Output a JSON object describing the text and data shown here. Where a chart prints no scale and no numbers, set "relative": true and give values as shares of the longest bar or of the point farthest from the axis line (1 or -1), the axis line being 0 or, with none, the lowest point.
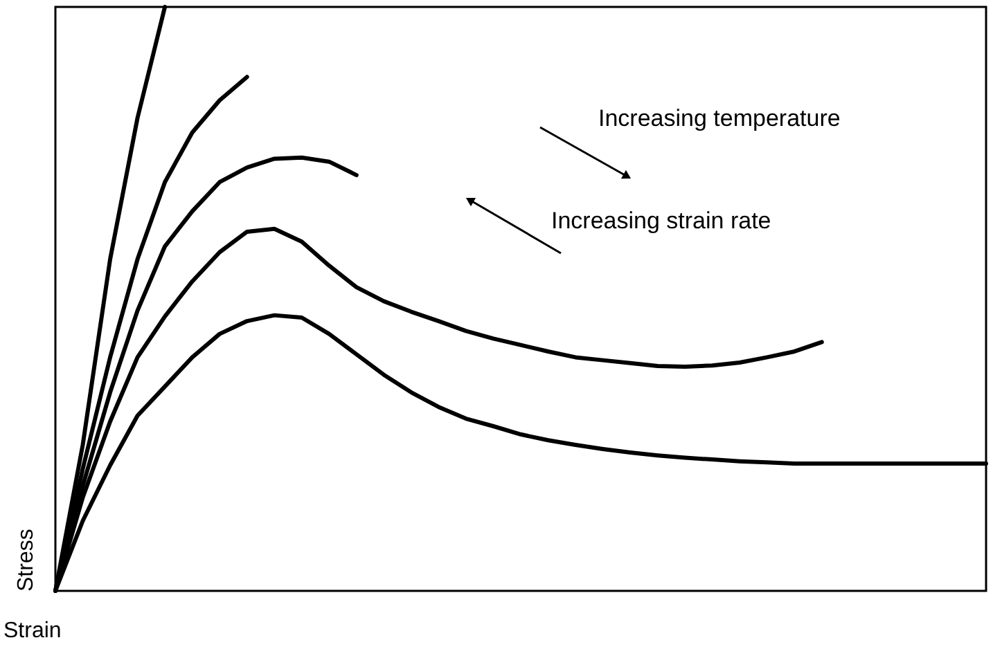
{
  "chart_data": {
    "type": "line",
    "relative": true,
    "xlabel": "Strain",
    "ylabel": "Stress",
    "annotations": [
      "Increasing temperature",
      "Increasing strain rate"
    ],
    "grid": false,
    "marker": "none",
    "line_style": "solid",
    "categories": [
      null,
      null,
      null,
      null,
      null,
      null,
      null,
      null,
      null,
      null,
      null,
      null,
      null,
      null,
      null,
      null,
      null,
      null,
      null,
      null,
      null,
      null,
      null,
      null,
      null,
      null,
      null,
      null,
      null,
      null,
      null,
      null,
      null,
      null,
      null
    ],
    "series": [
      {
        "color": "#000000",
        "values": [
          0,
          0.25,
          0.568,
          0.81,
          1.0,
          null,
          null,
          null,
          null,
          null,
          null,
          null,
          null,
          null,
          null,
          null,
          null,
          null,
          null,
          null,
          null,
          null,
          null,
          null,
          null,
          null,
          null,
          null,
          null,
          null,
          null,
          null,
          null,
          null,
          null
        ]
      },
      {
        "color": "#000000",
        "values": [
          0,
          0.209,
          0.4,
          0.568,
          0.7,
          0.785,
          0.84,
          0.88,
          null,
          null,
          null,
          null,
          null,
          null,
          null,
          null,
          null,
          null,
          null,
          null,
          null,
          null,
          null,
          null,
          null,
          null,
          null,
          null,
          null,
          null,
          null,
          null,
          null,
          null,
          null
        ]
      },
      {
        "color": "#000000",
        "values": [
          0,
          0.18,
          0.34,
          0.48,
          0.59,
          0.65,
          0.7,
          0.725,
          0.74,
          0.742,
          0.735,
          0.712,
          null,
          null,
          null,
          null,
          null,
          null,
          null,
          null,
          null,
          null,
          null,
          null,
          null,
          null,
          null,
          null,
          null,
          null,
          null,
          null,
          null,
          null,
          null
        ]
      },
      {
        "color": "#000000",
        "values": [
          0,
          0.16,
          0.29,
          0.4,
          0.47,
          0.53,
          0.58,
          0.615,
          0.62,
          0.598,
          0.557,
          0.52,
          0.496,
          0.478,
          0.462,
          0.445,
          0.432,
          0.421,
          0.41,
          0.4,
          0.395,
          0.39,
          0.385,
          0.384,
          0.386,
          0.391,
          0.4,
          0.41,
          0.426,
          null,
          null,
          null,
          null,
          null,
          null
        ]
      },
      {
        "color": "#000000",
        "values": [
          0,
          0.12,
          0.215,
          0.3,
          0.35,
          0.4,
          0.44,
          0.462,
          0.472,
          0.468,
          0.44,
          0.405,
          0.37,
          0.34,
          0.315,
          0.295,
          0.282,
          0.268,
          0.258,
          0.25,
          0.243,
          0.237,
          0.232,
          0.228,
          0.225,
          0.222,
          0.22,
          0.218,
          0.218,
          0.218,
          0.218,
          0.218,
          0.218,
          0.218,
          0.218
        ]
      }
    ]
  }
}
